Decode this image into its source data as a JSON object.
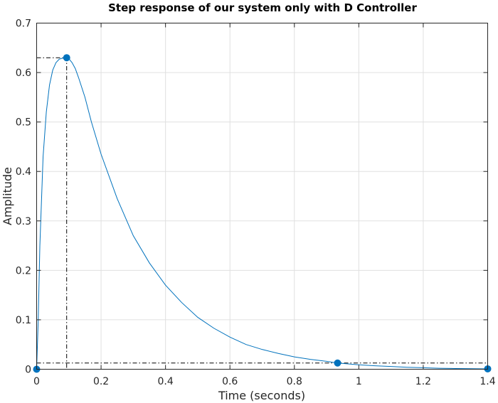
{
  "chart_data": {
    "type": "line",
    "title": "Step response of our system only with D Controller",
    "xlabel": "Time (seconds)",
    "ylabel": "Amplitude",
    "xlim": [
      0,
      1.4
    ],
    "ylim": [
      0,
      0.7
    ],
    "xticks": [
      0,
      0.2,
      0.4,
      0.6,
      0.8,
      1,
      1.2,
      1.4
    ],
    "xtick_labels": [
      "0",
      "0.2",
      "0.4",
      "0.6",
      "0.8",
      "1",
      "1.2",
      "1.4"
    ],
    "yticks": [
      0,
      0.1,
      0.2,
      0.3,
      0.4,
      0.5,
      0.6,
      0.7
    ],
    "ytick_labels": [
      "0",
      "0.1",
      "0.2",
      "0.3",
      "0.4",
      "0.5",
      "0.6",
      "0.7"
    ],
    "grid": true,
    "series": [
      {
        "color": "#0072bd",
        "x": [
          0,
          0.005,
          0.01,
          0.02,
          0.03,
          0.04,
          0.05,
          0.06,
          0.07,
          0.08,
          0.0932,
          0.1,
          0.11,
          0.12,
          0.13,
          0.15,
          0.17,
          0.2,
          0.25,
          0.3,
          0.35,
          0.4,
          0.45,
          0.5,
          0.55,
          0.6,
          0.65,
          0.7,
          0.75,
          0.8,
          0.85,
          0.9,
          0.934,
          1.0,
          1.05,
          1.1,
          1.15,
          1.2,
          1.25,
          1.3,
          1.35,
          1.4
        ],
        "y": [
          0,
          0.1,
          0.25,
          0.43,
          0.52,
          0.575,
          0.605,
          0.62,
          0.627,
          0.629,
          0.63,
          0.628,
          0.62,
          0.608,
          0.59,
          0.55,
          0.5,
          0.435,
          0.345,
          0.27,
          0.215,
          0.17,
          0.135,
          0.105,
          0.083,
          0.065,
          0.05,
          0.04,
          0.032,
          0.025,
          0.02,
          0.016,
          0.0126,
          0.009,
          0.007,
          0.0055,
          0.004,
          0.003,
          0.002,
          0.0015,
          0.001,
          0.0008
        ]
      }
    ],
    "markers": [
      {
        "x": 0,
        "y": 0
      },
      {
        "x": 0.0932,
        "y": 0.63
      },
      {
        "x": 0.934,
        "y": 0.0126
      },
      {
        "x": 1.4,
        "y": 0.0008
      }
    ],
    "guide_lines": {
      "peak": {
        "x": 0.0932,
        "y": 0.63
      },
      "settling": {
        "x": 0.934,
        "y": 0.0126
      }
    }
  }
}
